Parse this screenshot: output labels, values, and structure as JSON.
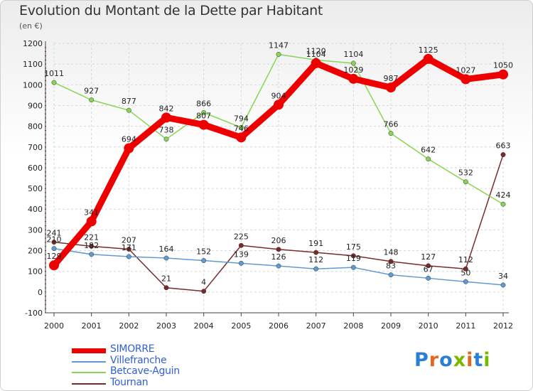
{
  "title": "Evolution du Montant de la Dette par Habitant",
  "subtitle": "(en €)",
  "logo": {
    "text": "Proxiti",
    "letters": [
      "P",
      "r",
      "o",
      "x",
      "i",
      "t",
      "i"
    ],
    "colors": [
      "#2a7fd4",
      "#e5671a",
      "#2a7fd4",
      "#7ab800",
      "#e5671a",
      "#2a7fd4",
      "#7ab800"
    ]
  },
  "chart_data": {
    "type": "line",
    "x": [
      "2000",
      "2001",
      "2002",
      "2003",
      "2004",
      "2005",
      "2006",
      "2007",
      "2008",
      "2009",
      "2010",
      "2011",
      "2012"
    ],
    "ylim": [
      -100,
      1200
    ],
    "yticks": [
      -100,
      0,
      100,
      200,
      300,
      400,
      500,
      600,
      700,
      800,
      900,
      1000,
      1100,
      1200
    ],
    "grid": true,
    "legend_position": "bottom-left",
    "series": [
      {
        "name": "SIMORRE",
        "color": "#ee0000",
        "values": [
          129,
          341,
          694,
          842,
          807,
          746,
          904,
          1104,
          1029,
          987,
          1125,
          1027,
          1050
        ],
        "labels": [
          "129",
          "341",
          "694",
          "842",
          "807",
          "746",
          "904",
          "1104",
          "1029",
          "987",
          "1125",
          "1027",
          "1050"
        ]
      },
      {
        "name": "Villefranche",
        "color": "#5f9bd0",
        "values": [
          210,
          182,
          171,
          164,
          152,
          139,
          126,
          112,
          119,
          83,
          67,
          50,
          34
        ],
        "labels": [
          "210",
          "182",
          "171",
          "164",
          "152",
          "139",
          "126",
          "112",
          "119",
          "83",
          "67",
          "50",
          "34"
        ]
      },
      {
        "name": "Betcave-Aguin",
        "color": "#88d455",
        "values": [
          1011,
          927,
          877,
          738,
          866,
          794,
          1147,
          1120,
          1104,
          766,
          642,
          532,
          424
        ],
        "labels": [
          "1011",
          "927",
          "877",
          "738",
          "866",
          "794",
          "1147",
          "1120",
          "1104",
          "766",
          "642",
          "532",
          "424"
        ]
      },
      {
        "name": "Tournan",
        "color": "#7a2a2a",
        "values": [
          241,
          221,
          207,
          21,
          4,
          225,
          206,
          191,
          175,
          148,
          127,
          112,
          663
        ],
        "labels": [
          "241",
          "221",
          "207",
          "21",
          "4",
          "225",
          "206",
          "191",
          "175",
          "148",
          "127",
          "112",
          "663"
        ]
      }
    ]
  }
}
